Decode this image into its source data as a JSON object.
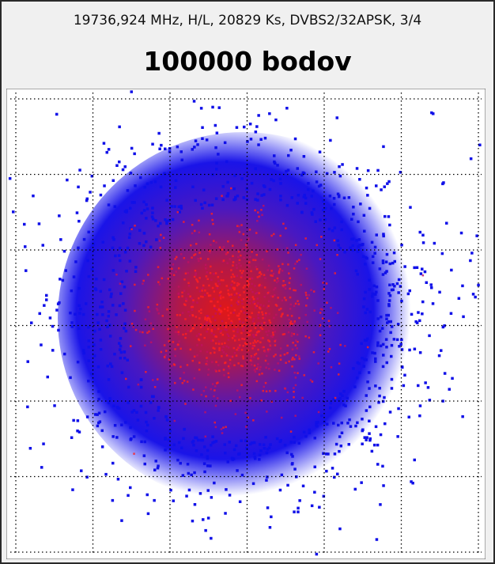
{
  "header": {
    "subtitle": "19736,924 MHz, H/L, 20829 Ks, DVBS2/32APSK, 3/4",
    "title": "100000 bodov"
  }
}
